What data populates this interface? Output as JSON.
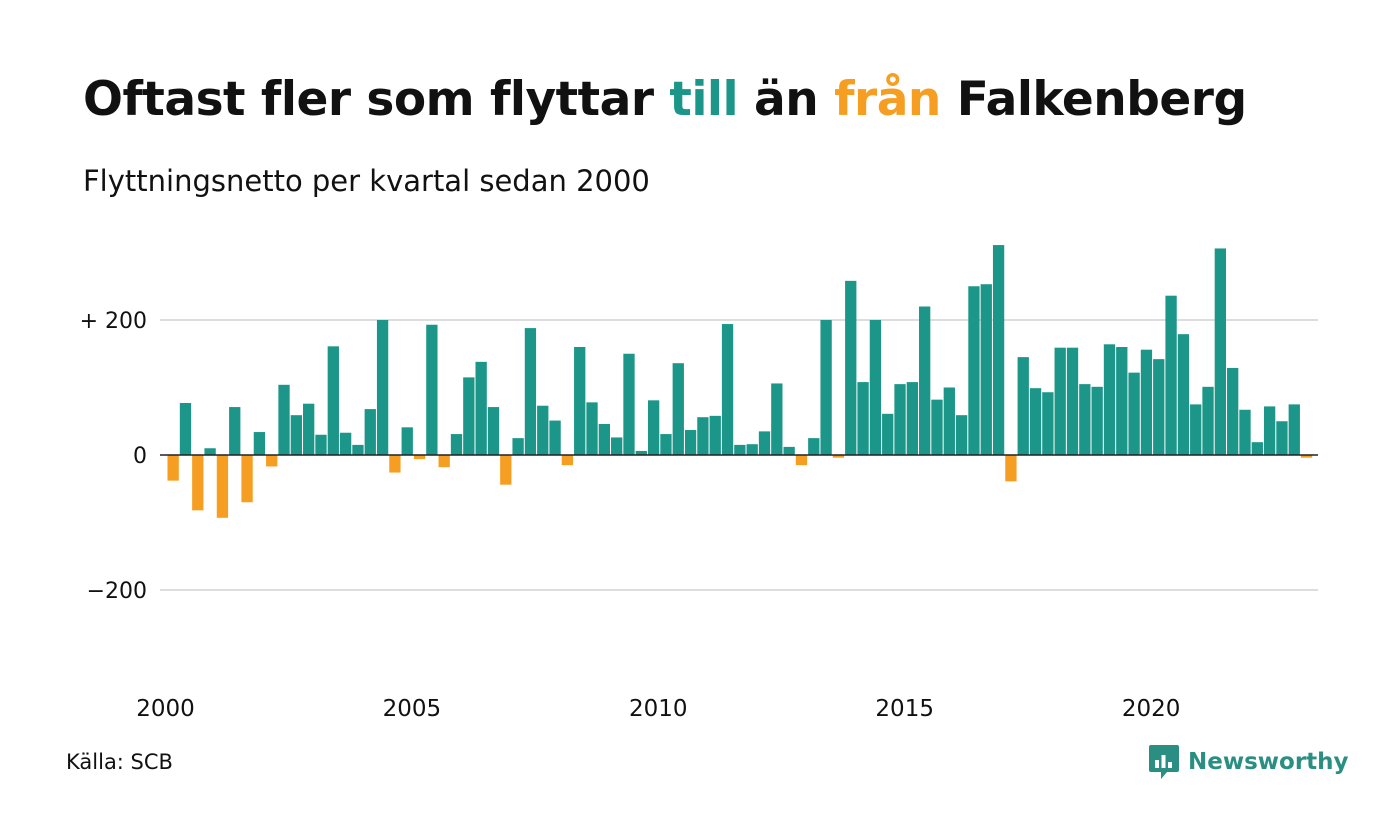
{
  "title": {
    "part1": "Oftast fler som flyttar ",
    "highlight_in": "till",
    "part2": " än ",
    "highlight_out": "från",
    "part3": " Falkenberg"
  },
  "subtitle": "Flyttningsnetto per kvartal sedan 2000",
  "source": "Källa: SCB",
  "brand": {
    "name": "Newsworthy",
    "icon": "newsworthy-logo-icon"
  },
  "colors": {
    "positive": "#1b9688",
    "negative": "#f59e22",
    "text": "#111111",
    "grid": "#dddddd",
    "zero_line": "#222222"
  },
  "chart_data": {
    "type": "bar",
    "x_start": "2000 Q1",
    "frequency": "quarterly",
    "x_tick_labels": [
      "2000",
      "2005",
      "2010",
      "2015",
      "2020"
    ],
    "y_tick_labels": [
      "+ 200",
      "0",
      "−200"
    ],
    "y_ticks": [
      200,
      0,
      -200
    ],
    "ylim": [
      -340,
      330
    ],
    "grid": true,
    "values": [
      -38,
      77,
      -82,
      10,
      -93,
      71,
      -70,
      34,
      -17,
      104,
      59,
      76,
      30,
      161,
      33,
      15,
      68,
      200,
      -26,
      41,
      -6,
      193,
      -18,
      31,
      115,
      138,
      71,
      -44,
      25,
      188,
      73,
      51,
      -15,
      160,
      78,
      46,
      26,
      150,
      6,
      81,
      31,
      136,
      37,
      56,
      58,
      194,
      15,
      16,
      35,
      106,
      12,
      -15,
      25,
      200,
      -4,
      258,
      108,
      200,
      61,
      105,
      108,
      220,
      82,
      100,
      59,
      250,
      253,
      311,
      -39,
      145,
      99,
      93,
      159,
      159,
      105,
      101,
      164,
      160,
      122,
      156,
      142,
      236,
      179,
      75,
      101,
      306,
      129,
      67,
      19,
      72,
      50,
      75,
      -4
    ]
  }
}
